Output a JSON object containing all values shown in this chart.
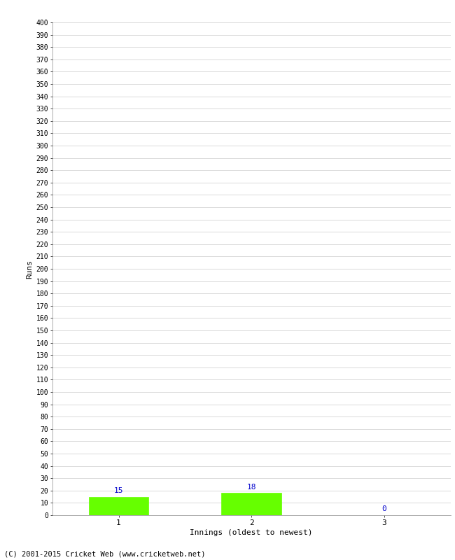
{
  "categories": [
    1,
    2,
    3
  ],
  "values": [
    15,
    18,
    0
  ],
  "bar_color": "#66ff00",
  "bar_edge_color": "#66ff00",
  "label_color": "#0000cc",
  "xlabel": "Innings (oldest to newest)",
  "ylabel": "Runs",
  "ylim": [
    0,
    400
  ],
  "ytick_interval": 10,
  "background_color": "#ffffff",
  "grid_color": "#cccccc",
  "footer": "(C) 2001-2015 Cricket Web (www.cricketweb.net)"
}
